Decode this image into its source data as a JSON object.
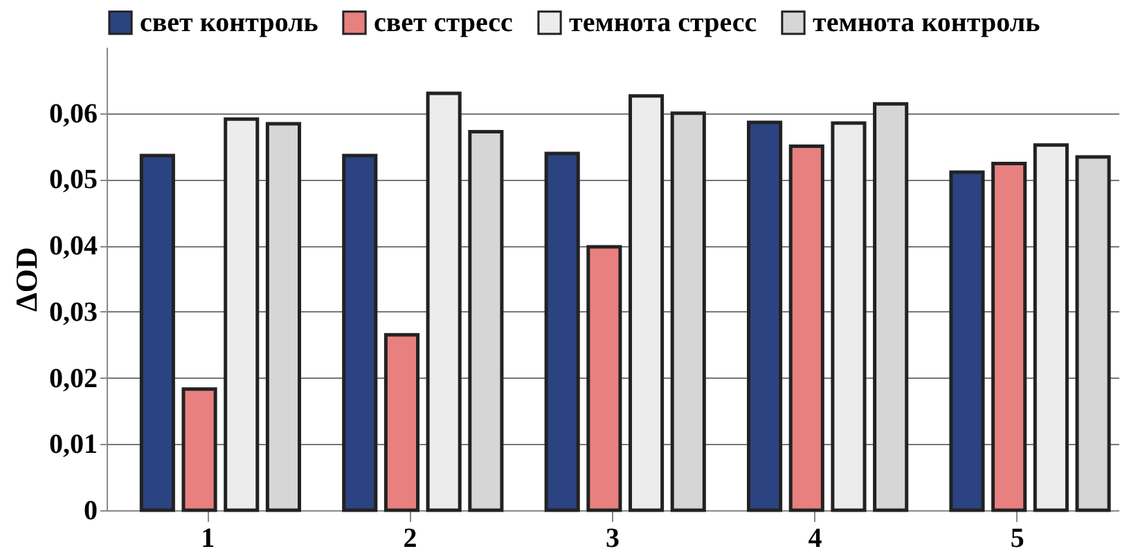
{
  "chart_data": {
    "type": "bar",
    "ylabel": "ΔOD",
    "categories": [
      "1",
      "2",
      "3",
      "4",
      "5"
    ],
    "series": [
      {
        "name": "свет контроль",
        "color": "#2b4380",
        "values": [
          0.0536,
          0.0536,
          0.0539,
          0.0586,
          0.0511
        ]
      },
      {
        "name": "свет стресс",
        "color": "#e88080",
        "values": [
          0.0183,
          0.0265,
          0.0398,
          0.055,
          0.0524
        ]
      },
      {
        "name": "темнота стресс",
        "color": "#ececec",
        "values": [
          0.0591,
          0.063,
          0.0626,
          0.0585,
          0.0552
        ]
      },
      {
        "name": "темнота контроль",
        "color": "#d6d6d6",
        "values": [
          0.0584,
          0.0572,
          0.06,
          0.0614,
          0.0534
        ]
      }
    ],
    "ylim": [
      0,
      0.07
    ],
    "yticks": [
      {
        "value": 0,
        "label": "0"
      },
      {
        "value": 0.01,
        "label": "0,01"
      },
      {
        "value": 0.02,
        "label": "0,02"
      },
      {
        "value": 0.03,
        "label": "0,03"
      },
      {
        "value": 0.04,
        "label": "0,04"
      },
      {
        "value": 0.05,
        "label": "0,05"
      },
      {
        "value": 0.06,
        "label": "0,06"
      }
    ],
    "grid": "y",
    "legend": "top"
  }
}
